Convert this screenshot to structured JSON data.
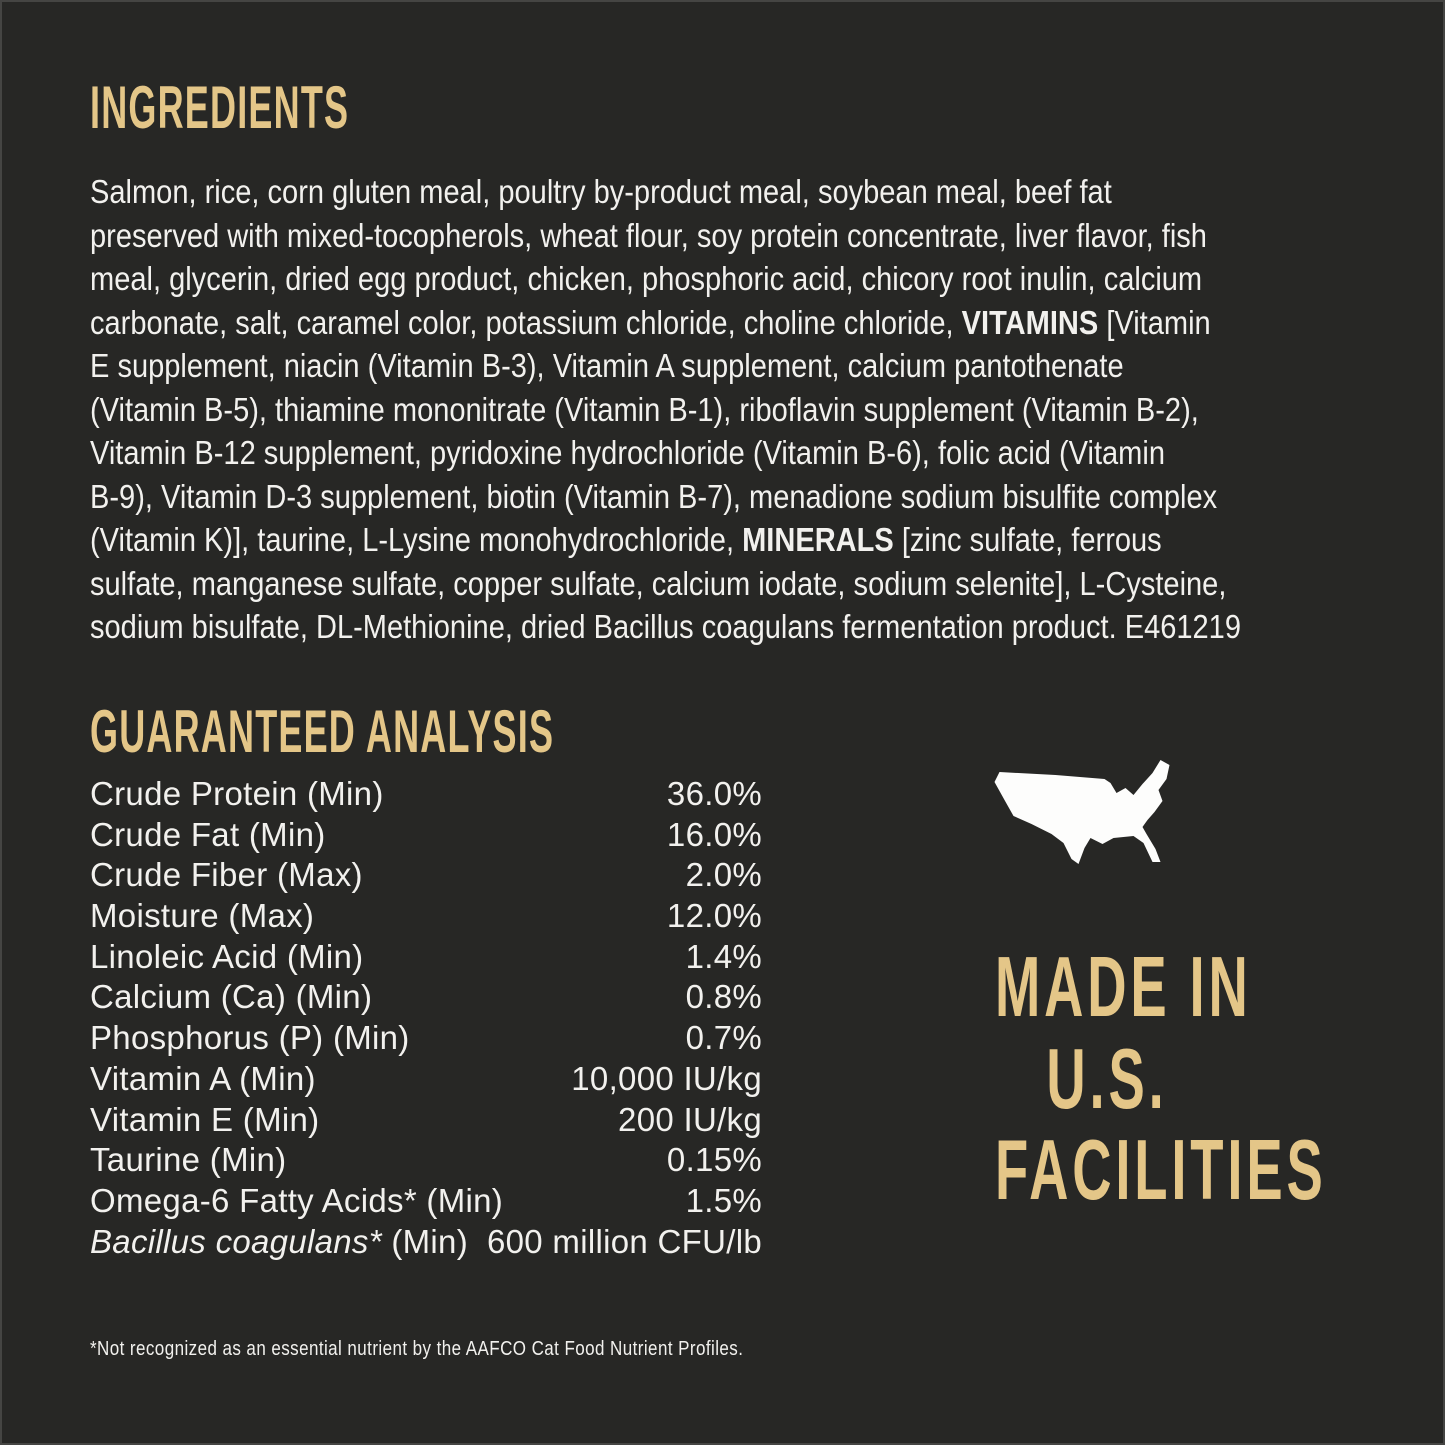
{
  "colors": {
    "background": "#272725",
    "frame": "#454543",
    "heading_accent": "#e4c688",
    "body_text": "#f2f1ee",
    "map_fill": "#fdfdfc"
  },
  "ingredients": {
    "heading": "INGREDIENTS",
    "lines": [
      [
        {
          "text": "Salmon, rice, corn gluten meal, poultry by-product meal, soybean meal, beef fat"
        }
      ],
      [
        {
          "text": "preserved with mixed-tocopherols, wheat flour, soy protein concentrate, liver flavor, fish"
        }
      ],
      [
        {
          "text": "meal, glycerin, dried egg product, chicken, phosphoric acid, chicory root inulin, calcium"
        }
      ],
      [
        {
          "text": "carbonate, salt, caramel color, potassium chloride, choline chloride, "
        },
        {
          "text": "VITAMINS",
          "bold": true
        },
        {
          "text": " [Vitamin"
        }
      ],
      [
        {
          "text": "E supplement, niacin (Vitamin B-3), Vitamin A supplement, calcium pantothenate"
        }
      ],
      [
        {
          "text": "(Vitamin B-5), thiamine mononitrate (Vitamin B-1), riboflavin supplement (Vitamin B-2),"
        }
      ],
      [
        {
          "text": "Vitamin B-12 supplement, pyridoxine hydrochloride (Vitamin B-6), folic acid (Vitamin"
        }
      ],
      [
        {
          "text": "B-9), Vitamin D-3 supplement, biotin (Vitamin B-7), menadione sodium bisulfite complex"
        }
      ],
      [
        {
          "text": "(Vitamin K)], taurine, L-Lysine monohydrochloride, "
        },
        {
          "text": "MINERALS",
          "bold": true
        },
        {
          "text": " [zinc sulfate, ferrous"
        }
      ],
      [
        {
          "text": "sulfate, manganese sulfate, copper sulfate, calcium iodate, sodium selenite], L-Cysteine,"
        }
      ],
      [
        {
          "text": "sodium bisulfate, DL-Methionine, dried Bacillus coagulans fermentation product. E461219"
        }
      ]
    ]
  },
  "guaranteed_analysis": {
    "heading": "GUARANTEED ANALYSIS",
    "rows": [
      {
        "label": [
          {
            "text": "Crude Protein (Min)"
          }
        ],
        "value": "36.0%"
      },
      {
        "label": [
          {
            "text": "Crude Fat (Min)"
          }
        ],
        "value": "16.0%"
      },
      {
        "label": [
          {
            "text": "Crude Fiber (Max)"
          }
        ],
        "value": "2.0%"
      },
      {
        "label": [
          {
            "text": "Moisture (Max)"
          }
        ],
        "value": "12.0%"
      },
      {
        "label": [
          {
            "text": "Linoleic Acid (Min)"
          }
        ],
        "value": "1.4%"
      },
      {
        "label": [
          {
            "text": "Calcium (Ca) (Min)"
          }
        ],
        "value": "0.8%"
      },
      {
        "label": [
          {
            "text": "Phosphorus (P) (Min)"
          }
        ],
        "value": "0.7%"
      },
      {
        "label": [
          {
            "text": "Vitamin A (Min)"
          }
        ],
        "value": "10,000 IU/kg"
      },
      {
        "label": [
          {
            "text": "Vitamin E (Min)"
          }
        ],
        "value": "200 IU/kg"
      },
      {
        "label": [
          {
            "text": "Taurine (Min)"
          }
        ],
        "value": "0.15%"
      },
      {
        "label": [
          {
            "text": "Omega-6 Fatty Acids* (Min)"
          }
        ],
        "value": "1.5%"
      },
      {
        "label": [
          {
            "text": "Bacillus coagulans*",
            "italic": true
          },
          {
            "text": " (Min)"
          }
        ],
        "value": "600 million CFU/lb"
      }
    ]
  },
  "footnote": "*Not recognized as an essential nutrient by the AAFCO Cat Food Nutrient Profiles.",
  "made_in": {
    "map_icon": "usa-map-icon",
    "lines": [
      "MADE IN",
      "U.S.",
      "FACILITIES"
    ]
  }
}
